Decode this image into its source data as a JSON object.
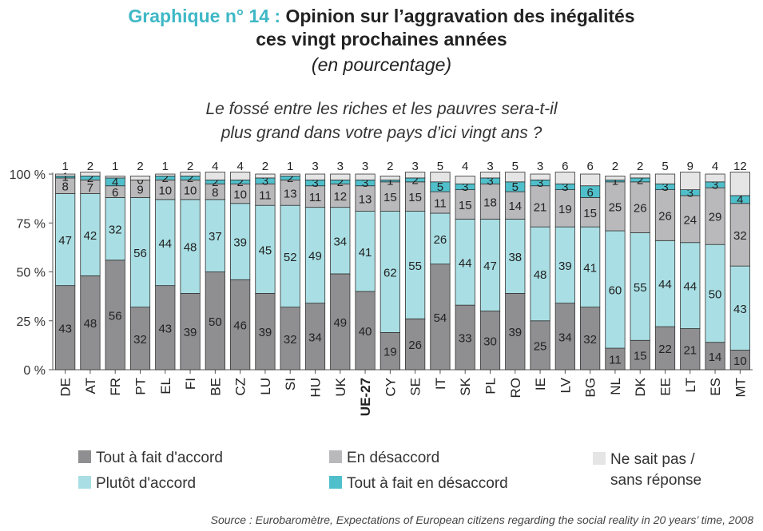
{
  "header": {
    "title_prefix": "Graphique n° 14 :",
    "title_line1": "Opinion sur l’aggravation des inégalités",
    "title_line2": "ces vingt prochaines années",
    "unit_note": "(en pourcentage)",
    "question_line1": "Le fossé entre les riches et les pauvres sera-t-il",
    "question_line2": "plus grand dans votre pays d’ici vingt ans ?"
  },
  "source": "Source : Eurobaromètre, Expectations of European citizens regarding the social reality in 20 years’ time, 2008",
  "colors": {
    "tout_accord": "#8f8f91",
    "plutot_accord": "#a9dfe4",
    "desaccord": "#b9b9bb",
    "tout_desaccord": "#4fc0cb",
    "nsp": "#e5e5e6"
  },
  "chart_data": {
    "type": "bar",
    "stacked": true,
    "categories": [
      "DE",
      "AT",
      "FR",
      "PT",
      "EL",
      "FI",
      "BE",
      "CZ",
      "LU",
      "SI",
      "HU",
      "UK",
      "UE-27",
      "CY",
      "SE",
      "IT",
      "SK",
      "PL",
      "RO",
      "IE",
      "LV",
      "BG",
      "NL",
      "DK",
      "EE",
      "LT",
      "ES",
      "MT"
    ],
    "highlight_category": "UE-27",
    "ylim": [
      0,
      100
    ],
    "yticks": [
      {
        "value": 0,
        "label": "0 %"
      },
      {
        "value": 25,
        "label": "25 %"
      },
      {
        "value": 50,
        "label": "50 %"
      },
      {
        "value": 75,
        "label": "75 %"
      },
      {
        "value": 100,
        "label": "100 %"
      }
    ],
    "series": [
      {
        "name": "Tout à fait d'accord",
        "color_key": "tout_accord",
        "values": [
          43,
          48,
          56,
          32,
          43,
          39,
          50,
          46,
          39,
          32,
          34,
          49,
          40,
          19,
          26,
          54,
          33,
          30,
          39,
          25,
          34,
          32,
          11,
          15,
          22,
          21,
          14,
          10
        ]
      },
      {
        "name": "Plutôt d'accord",
        "color_key": "plutot_accord",
        "values": [
          47,
          42,
          32,
          56,
          44,
          48,
          37,
          39,
          45,
          52,
          49,
          34,
          41,
          62,
          55,
          26,
          44,
          47,
          38,
          48,
          39,
          41,
          60,
          55,
          44,
          44,
          50,
          43
        ]
      },
      {
        "name": "En désaccord",
        "color_key": "desaccord",
        "values": [
          8,
          7,
          6,
          9,
          10,
          10,
          8,
          10,
          11,
          13,
          11,
          12,
          13,
          15,
          15,
          11,
          15,
          18,
          14,
          21,
          19,
          15,
          25,
          26,
          26,
          24,
          29,
          32
        ]
      },
      {
        "name": "Tout à fait en désaccord",
        "color_key": "tout_desaccord",
        "values": [
          1,
          2,
          4,
          0,
          2,
          2,
          2,
          2,
          3,
          2,
          3,
          2,
          3,
          1,
          2,
          5,
          3,
          3,
          5,
          3,
          3,
          6,
          1,
          2,
          3,
          3,
          3,
          4
        ]
      },
      {
        "name": "Ne sait pas / sans réponse",
        "color_key": "nsp",
        "values": [
          1,
          2,
          1,
          2,
          1,
          2,
          4,
          4,
          2,
          1,
          3,
          3,
          3,
          2,
          3,
          5,
          4,
          3,
          5,
          3,
          6,
          6,
          2,
          2,
          5,
          9,
          4,
          12
        ]
      }
    ]
  },
  "legend": [
    {
      "label": "Tout à fait d'accord",
      "color_key": "tout_accord"
    },
    {
      "label": "Plutôt d'accord",
      "color_key": "plutot_accord"
    },
    {
      "label": "En désaccord",
      "color_key": "desaccord"
    },
    {
      "label": "Tout à fait en désaccord",
      "color_key": "tout_desaccord"
    },
    {
      "label_line1": "Ne sait pas /",
      "label_line2": "sans réponse",
      "color_key": "nsp"
    }
  ]
}
